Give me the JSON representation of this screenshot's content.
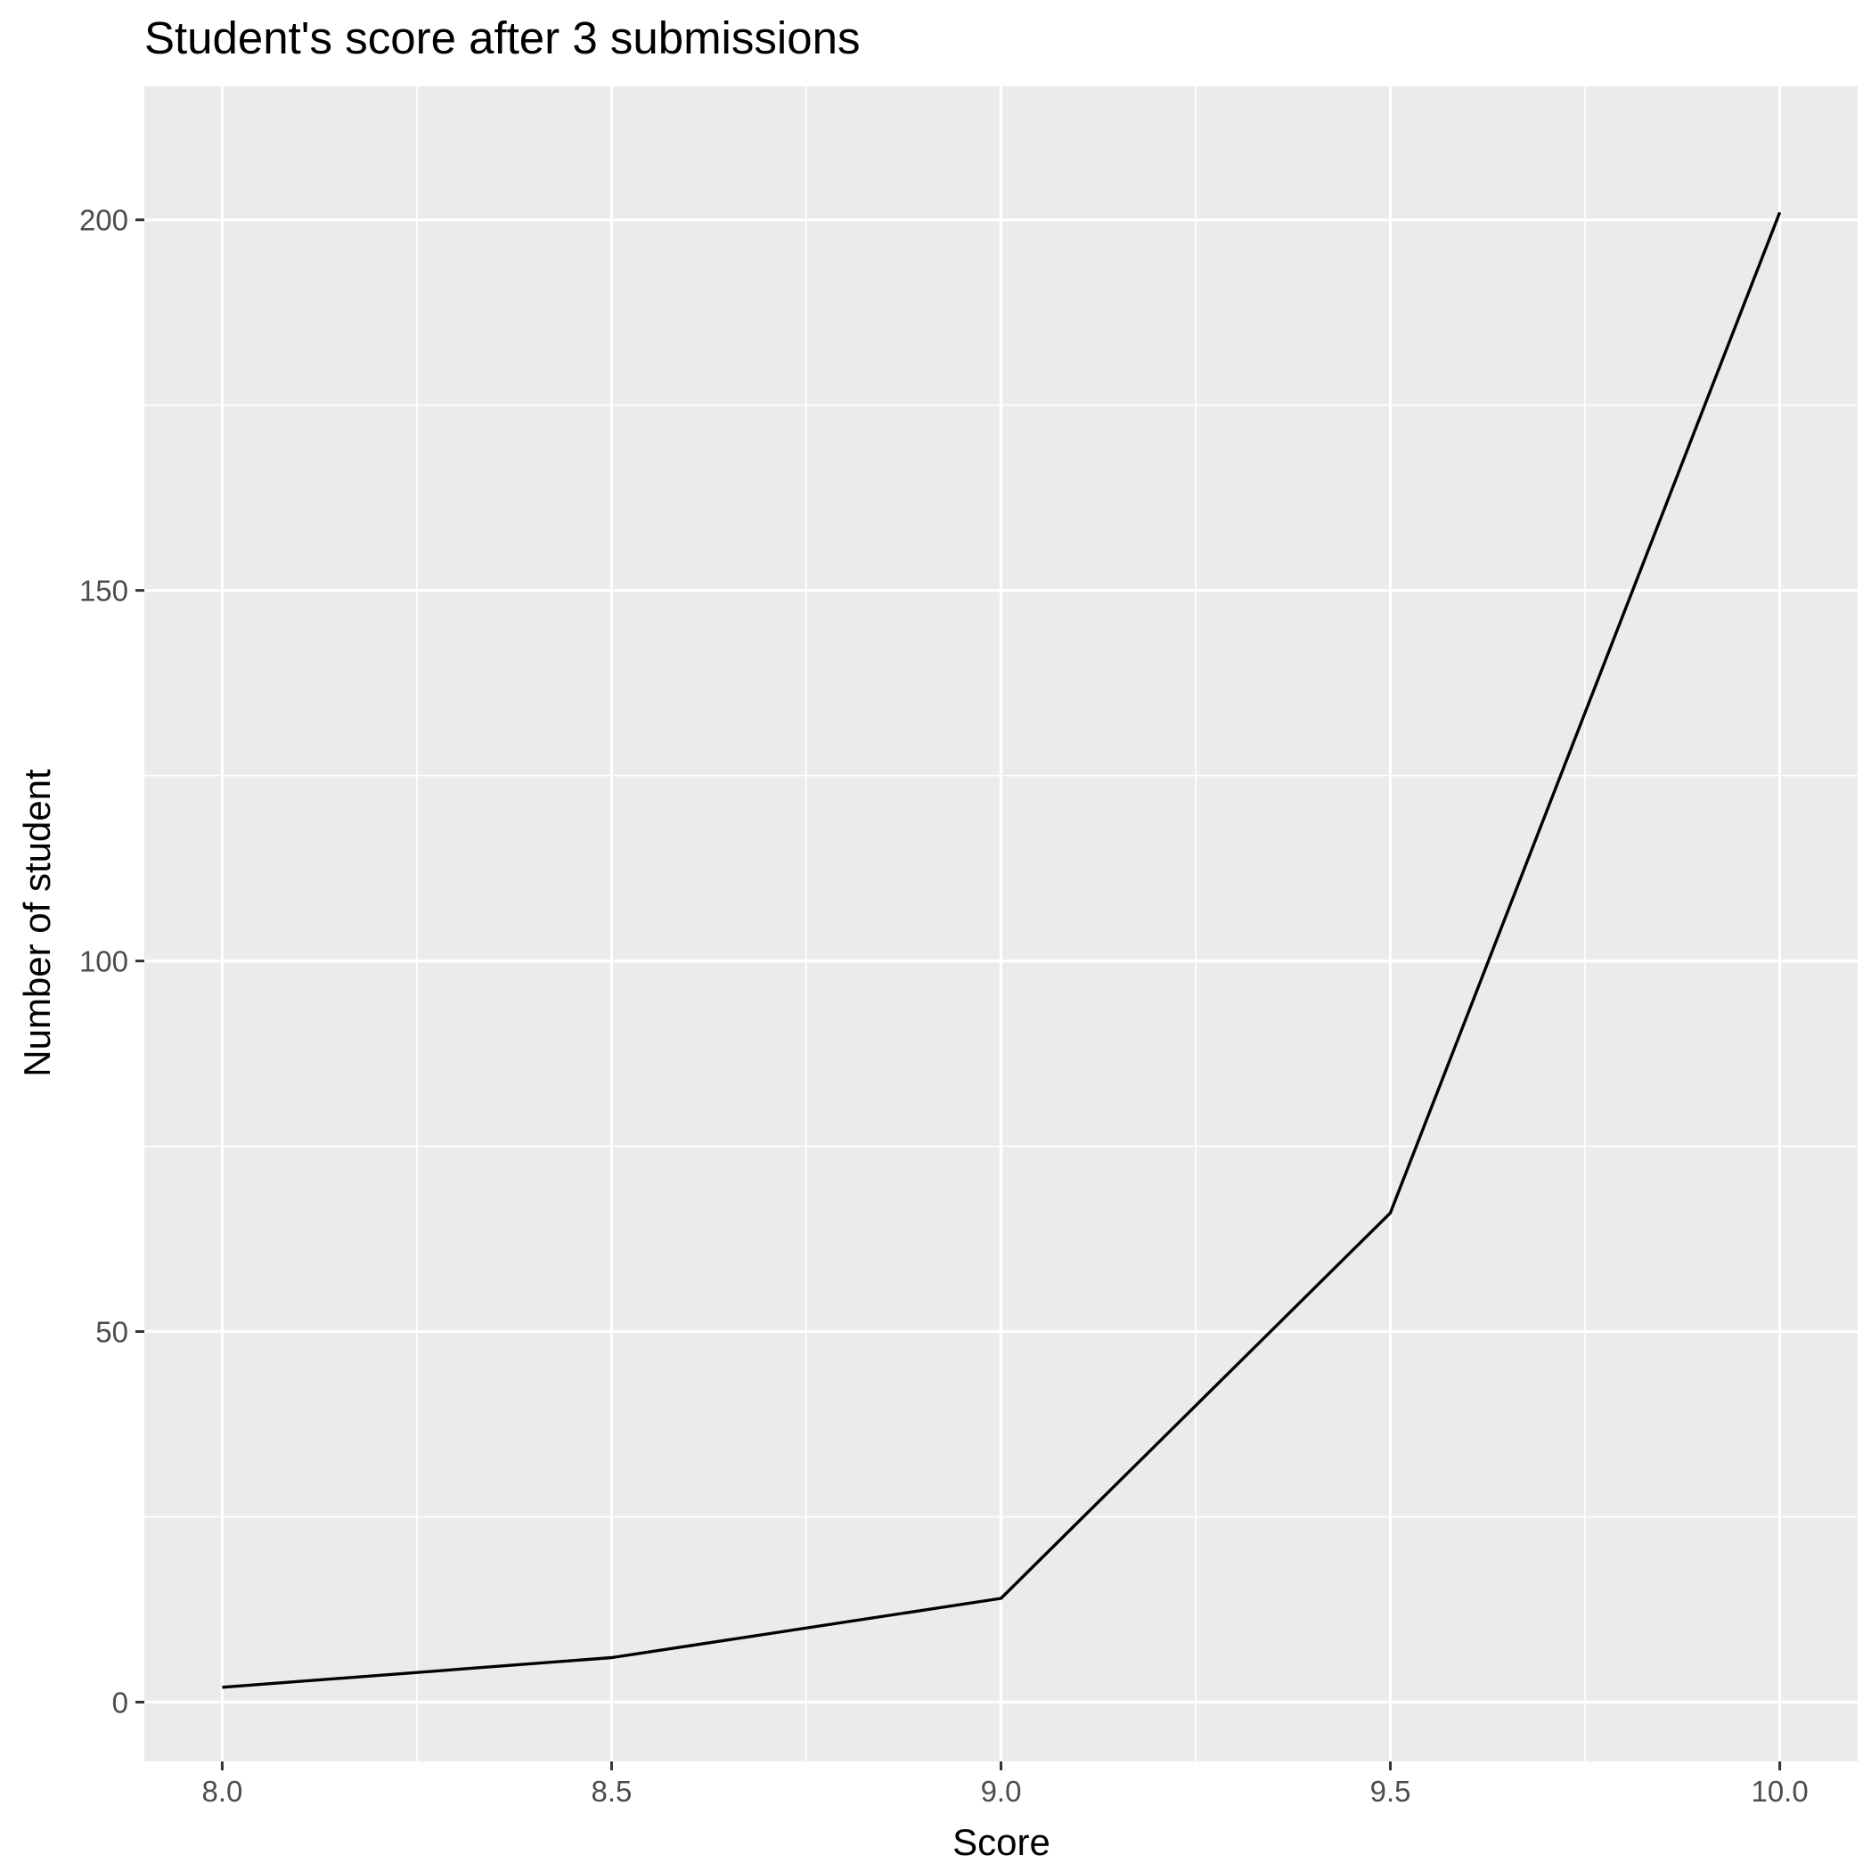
{
  "chart_data": {
    "type": "line",
    "title": "Student's score after 3 submissions",
    "xlabel": "Score",
    "ylabel": "Number of student",
    "x": [
      8.0,
      8.5,
      9.0,
      9.5,
      10.0
    ],
    "series": [
      {
        "values": [
          2,
          6,
          14,
          66,
          201
        ]
      }
    ],
    "xlim": [
      7.9,
      10.1
    ],
    "ylim": [
      -8,
      218
    ],
    "x_ticks": [
      "8.0",
      "8.5",
      "9.0",
      "9.5",
      "10.0"
    ],
    "x_tick_values": [
      8.0,
      8.5,
      9.0,
      9.5,
      10.0
    ],
    "y_ticks": [
      "0",
      "50",
      "100",
      "150",
      "200"
    ],
    "y_tick_values": [
      0,
      50,
      100,
      150,
      200
    ],
    "grid": true,
    "legend": "none",
    "colors": {
      "panel_background": "#ebebeb",
      "grid_line": "#ffffff",
      "line": "#000000",
      "tick": "#333333"
    }
  }
}
